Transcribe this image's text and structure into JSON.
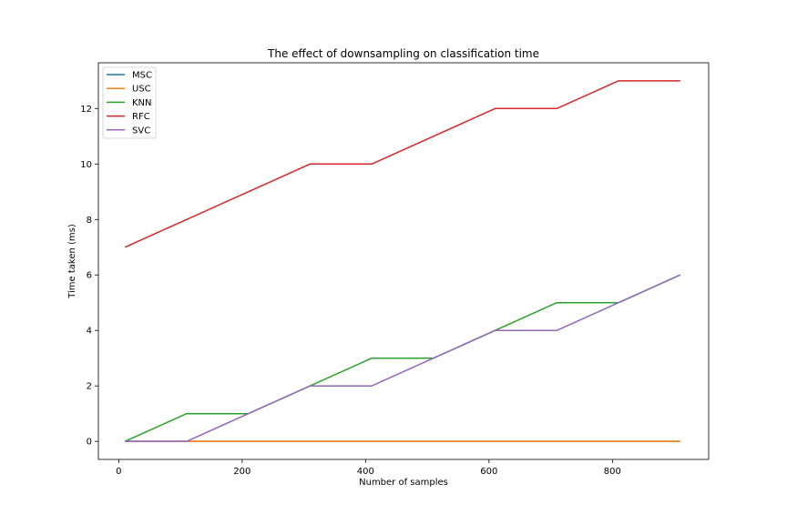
{
  "chart_data": {
    "type": "line",
    "title": "The effect of downsampling on classification time",
    "xlabel": "Number of samples",
    "ylabel": "Time taken (ms)",
    "xlim": [
      -33,
      956
    ],
    "ylim": [
      -0.65,
      13.65
    ],
    "xticks": [
      0,
      200,
      400,
      600,
      800
    ],
    "yticks": [
      0,
      2,
      4,
      6,
      8,
      10,
      12
    ],
    "grid": false,
    "legend_position": "top-left",
    "x": [
      10,
      110,
      210,
      310,
      410,
      510,
      610,
      710,
      810,
      910
    ],
    "series": [
      {
        "name": "MSC",
        "color": "#1f77b4",
        "values": [
          0,
          0,
          0,
          0,
          0,
          0,
          0,
          0,
          0,
          0
        ]
      },
      {
        "name": "USC",
        "color": "#ff7f0e",
        "values": [
          0,
          0,
          0,
          0,
          0,
          0,
          0,
          0,
          0,
          0
        ]
      },
      {
        "name": "KNN",
        "color": "#2ca02c",
        "values": [
          0,
          1,
          1,
          2,
          3,
          3,
          4,
          5,
          5,
          6
        ]
      },
      {
        "name": "RFC",
        "color": "#d62728",
        "values": [
          7,
          8,
          9,
          10,
          10,
          11,
          12,
          12,
          13,
          13
        ]
      },
      {
        "name": "SVC",
        "color": "#9467bd",
        "values": [
          0,
          0,
          1,
          2,
          2,
          3,
          4,
          4,
          5,
          6
        ]
      }
    ]
  }
}
